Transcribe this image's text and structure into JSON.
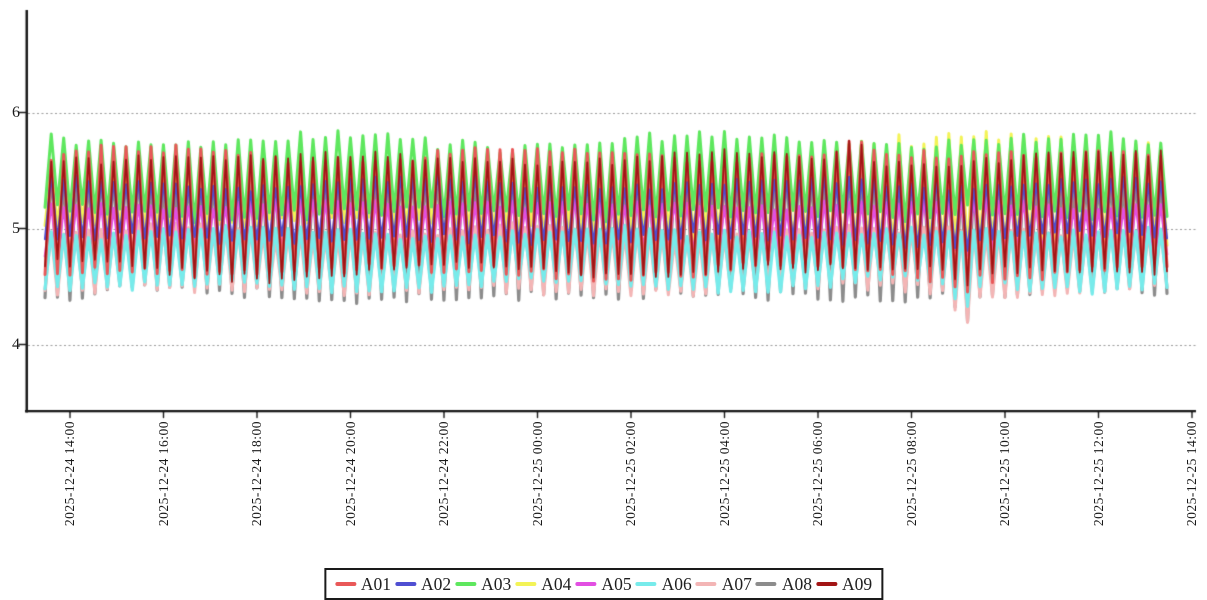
{
  "chart_data": {
    "type": "line",
    "title": "",
    "xlabel": "",
    "ylabel": "",
    "grid": {
      "visible": true,
      "style": "dashed",
      "color": "#999999"
    },
    "legend_position": "bottom",
    "x_axis": {
      "tick_labels": [
        "2025-12-24 14:00",
        "2025-12-24 16:00",
        "2025-12-24 18:00",
        "2025-12-24 20:00",
        "2025-12-24 22:00",
        "2025-12-25 00:00",
        "2025-12-25 02:00",
        "2025-12-25 04:00",
        "2025-12-25 06:00",
        "2025-12-25 08:00",
        "2025-12-25 10:00",
        "2025-12-25 12:00",
        "2025-12-25 14:00"
      ],
      "start_time": "2025-12-24 13:28",
      "end_time": "2025-12-25 13:28",
      "minutes_per_point": 8,
      "points_per_series": 181
    },
    "y_axis": {
      "ticks": [
        4,
        5,
        6
      ],
      "ylim": [
        3.4,
        6.9
      ]
    },
    "events": {
      "dip_center": 0.818,
      "boost_center": 0.72
    },
    "series": [
      {
        "name": "A01",
        "color": "#e95858",
        "mid": 5.13,
        "amp": 1.0,
        "jitter": 0.055,
        "line_width": 3.0,
        "z": 7,
        "dip": 0.15,
        "boost": 0.13
      },
      {
        "name": "A02",
        "color": "#4f4fd2",
        "mid": 5.15,
        "amp": 0.48,
        "jitter": 0.05,
        "line_width": 2.2,
        "z": 8,
        "dip": 0.08,
        "boost": 0
      },
      {
        "name": "A03",
        "color": "#5ee75e",
        "mid": 5.44,
        "amp": 0.62,
        "jitter": 0.07,
        "line_width": 3.0,
        "z": 3,
        "dip": 0,
        "boost": 0
      },
      {
        "name": "A04",
        "color": "#f3f356",
        "mid": 5.28,
        "amp": 0.5,
        "amp_late": 0.92,
        "jitter": 0.07,
        "line_width": 3.0,
        "z": 2,
        "dip": 0,
        "boost": 0.05
      },
      {
        "name": "A05",
        "color": "#e24fe2",
        "mid": 5.0,
        "amp": 0.42,
        "jitter": 0.045,
        "line_width": 2.6,
        "z": 6,
        "dip": 0.05,
        "boost": 0
      },
      {
        "name": "A06",
        "color": "#77ebeb",
        "mid": 4.74,
        "amp": 0.46,
        "jitter": 0.05,
        "line_width": 3.2,
        "z": 5,
        "dip": 0.3,
        "boost": 0
      },
      {
        "name": "A07",
        "color": "#f3b5b5",
        "mid": 4.72,
        "amp": 0.5,
        "jitter": 0.055,
        "line_width": 3.0,
        "z": 4,
        "dip": 0.35,
        "boost": 0
      },
      {
        "name": "A08",
        "color": "#8c8c8c",
        "mid": 4.95,
        "amp": 1.06,
        "jitter": 0.065,
        "line_width": 3.2,
        "z": 1,
        "dip": 0.22,
        "boost": 0
      },
      {
        "name": "A09",
        "color": "#a21515",
        "mid": 5.12,
        "amp": 0.97,
        "jitter": 0.05,
        "line_width": 1.8,
        "z": 9,
        "dip": 0.15,
        "boost": 0.2
      }
    ]
  }
}
